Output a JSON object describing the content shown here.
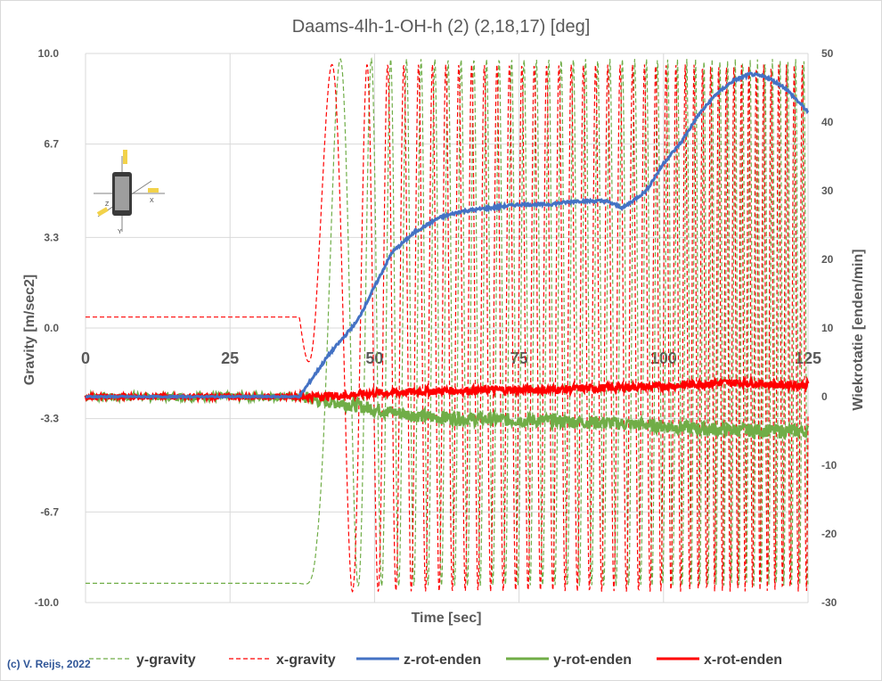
{
  "chart_data": {
    "type": "line",
    "title": "Daams-4lh-1-OH-h (2) (2,18,17) [deg]",
    "xlabel": "Time [sec]",
    "ylabel_left": "Gravity  [m/sec2]",
    "ylabel_right": "Wiekrotatie  [enden/min]",
    "xlim": [
      0,
      125
    ],
    "ylim_left": [
      -10.0,
      10.0
    ],
    "ylim_right": [
      -30,
      50
    ],
    "x_ticks": [
      "0",
      "25",
      "50",
      "75",
      "100",
      "125"
    ],
    "y_left_ticks": [
      "10.0",
      "6.7",
      "3.3",
      "0.0",
      "-3.3",
      "-6.7",
      "-10.0"
    ],
    "y_right_ticks": [
      "50",
      "40",
      "30",
      "20",
      "10",
      "0",
      "-10",
      "-20",
      "-30"
    ],
    "grid": true,
    "legend_position": "bottom",
    "series": [
      {
        "name": "y-gravity",
        "axis": "left",
        "color": "#70ad47",
        "style": "dashed",
        "description_points": [
          [
            0,
            -9.3
          ],
          [
            38,
            -9.3
          ],
          [
            46,
            -3
          ],
          [
            51,
            9.7
          ],
          [
            55,
            -9.3
          ],
          [
            125,
            9.7
          ]
        ]
      },
      {
        "name": "x-gravity",
        "axis": "left",
        "color": "#ff0000",
        "style": "dashed",
        "description_points": [
          [
            0,
            0.4
          ],
          [
            36,
            0.4
          ],
          [
            48,
            -9.6
          ],
          [
            54,
            9.6
          ],
          [
            125,
            9.6
          ]
        ]
      },
      {
        "name": "z-rot-enden",
        "axis": "right",
        "color": "#4472c4",
        "style": "solid",
        "x": [
          0,
          37,
          42,
          47,
          50,
          53,
          57,
          61,
          65,
          70,
          75,
          80,
          85,
          90,
          93,
          97,
          100,
          103,
          106,
          109,
          112,
          115,
          118,
          121,
          125
        ],
        "y": [
          0,
          0,
          6,
          11,
          16,
          21,
          24,
          26,
          27,
          27.5,
          28,
          28,
          28.5,
          28.5,
          27.5,
          30,
          34,
          37,
          41,
          44,
          46,
          47,
          46.5,
          45,
          41.5
        ]
      },
      {
        "name": "y-rot-enden",
        "axis": "right",
        "color": "#70ad47",
        "style": "solid",
        "x": [
          0,
          37,
          40,
          45,
          50,
          55,
          60,
          70,
          80,
          90,
          100,
          110,
          120,
          125
        ],
        "y": [
          0,
          0,
          -0.5,
          -1,
          -1.8,
          -2.5,
          -3,
          -3.3,
          -3.5,
          -3.8,
          -4.3,
          -4.8,
          -5.0,
          -5.0
        ]
      },
      {
        "name": "x-rot-enden",
        "axis": "right",
        "color": "#ff0000",
        "style": "solid",
        "x": [
          0,
          37,
          45,
          50,
          60,
          70,
          80,
          90,
          100,
          105,
          110,
          115,
          120,
          125
        ],
        "y": [
          0,
          0,
          0.2,
          0.5,
          0.8,
          1.0,
          1.0,
          1.3,
          1.5,
          1.8,
          2.0,
          2.0,
          1.7,
          1.7
        ]
      }
    ]
  },
  "legend": {
    "items": [
      "y-gravity",
      "x-gravity",
      "z-rot-enden",
      "y-rot-enden",
      "x-rot-enden"
    ]
  },
  "credit": "(c) V. Reijs, 2022",
  "inset_image": {
    "icon": "phone-axes-icon",
    "labels": [
      "Z",
      "X",
      "Y"
    ]
  }
}
